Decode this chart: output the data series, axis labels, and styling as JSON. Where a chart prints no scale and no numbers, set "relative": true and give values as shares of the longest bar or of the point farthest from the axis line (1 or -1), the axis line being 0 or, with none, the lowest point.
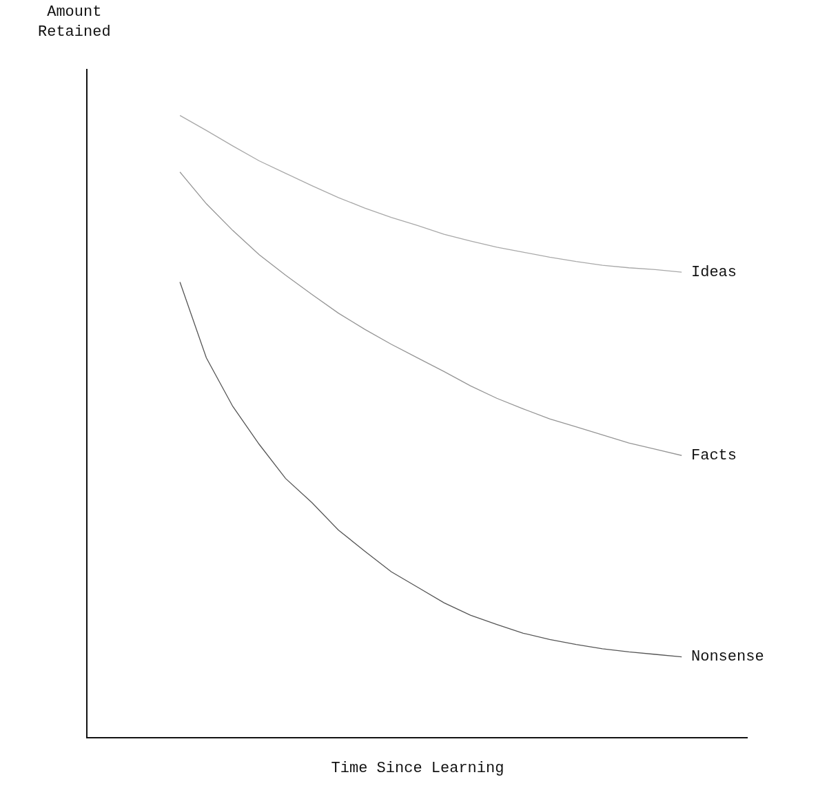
{
  "chart_data": {
    "type": "line",
    "relative": true,
    "xlabel": "Time Since Learning",
    "ylabel": "Amount\nRetained",
    "categories": [
      null,
      null,
      null,
      null,
      null,
      null,
      null,
      null,
      null,
      null,
      null,
      null,
      null,
      null,
      null,
      null,
      null,
      null,
      null,
      null,
      null,
      null,
      null,
      null,
      null
    ],
    "series": [
      {
        "name": "Ideas",
        "color": "#a8a8a8",
        "values": [
          null,
          null,
          null,
          1.0,
          0.976,
          0.951,
          0.927,
          0.907,
          0.887,
          0.868,
          0.851,
          0.836,
          0.823,
          0.809,
          0.798,
          0.788,
          0.78,
          0.772,
          0.765,
          0.759,
          0.755,
          0.752,
          0.748,
          null,
          null
        ]
      },
      {
        "name": "Facts",
        "color": "#959595",
        "values": [
          null,
          null,
          null,
          0.909,
          0.858,
          0.815,
          0.776,
          0.743,
          0.712,
          0.682,
          0.656,
          0.632,
          0.61,
          0.588,
          0.565,
          0.545,
          0.528,
          0.512,
          0.499,
          0.486,
          0.473,
          0.463,
          0.453,
          null,
          null
        ]
      },
      {
        "name": "Nonsense",
        "color": "#555555",
        "values": [
          null,
          null,
          null,
          0.732,
          0.61,
          0.532,
          0.471,
          0.416,
          0.377,
          0.333,
          0.299,
          0.266,
          0.241,
          0.216,
          0.196,
          0.181,
          0.167,
          0.157,
          0.149,
          0.142,
          0.137,
          0.133,
          0.129,
          null,
          null
        ]
      }
    ],
    "legend": false,
    "marker": "none",
    "line_style": "solid"
  }
}
